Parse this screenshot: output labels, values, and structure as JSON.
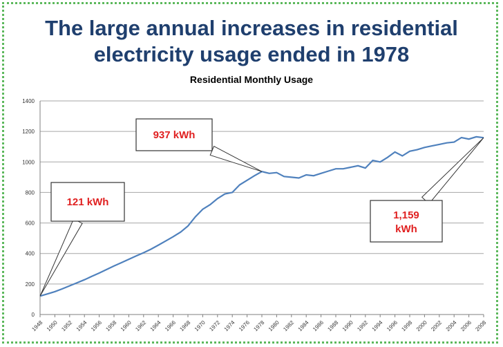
{
  "headline": {
    "line1": "The large annual increases in residential",
    "line2": "electricity usage ended in 1978"
  },
  "chart_data": {
    "type": "line",
    "title": "Residential Monthly Usage",
    "xlabel": "",
    "ylabel": "",
    "ylim": [
      0,
      1400
    ],
    "xlim": [
      1948,
      2008
    ],
    "yticks": [
      "0",
      "200",
      "400",
      "600",
      "800",
      "1000",
      "1200",
      "1400"
    ],
    "xticks": [
      "1948",
      "1950",
      "1952",
      "1954",
      "1956",
      "1958",
      "1960",
      "1962",
      "1964",
      "1966",
      "1968",
      "1970",
      "1972",
      "1974",
      "1976",
      "1978",
      "1980",
      "1982",
      "1984",
      "1986",
      "1988",
      "1990",
      "1992",
      "1994",
      "1996",
      "1998",
      "2000",
      "2002",
      "2004",
      "2006",
      "2008"
    ],
    "grid": true,
    "line_color": "#4f81bd",
    "series": [
      {
        "x": [
          1948,
          1949,
          1950,
          1951,
          1952,
          1953,
          1954,
          1955,
          1956,
          1957,
          1958,
          1959,
          1960,
          1961,
          1962,
          1963,
          1964,
          1965,
          1966,
          1967,
          1968,
          1969,
          1970,
          1971,
          1972,
          1973,
          1974,
          1975,
          1976,
          1977,
          1978,
          1979,
          1980,
          1981,
          1982,
          1983,
          1984,
          1985,
          1986,
          1987,
          1988,
          1989,
          1990,
          1991,
          1992,
          1993,
          1994,
          1995,
          1996,
          1997,
          1998,
          1999,
          2000,
          2001,
          2002,
          2003,
          2004,
          2005,
          2006,
          2007,
          2008
        ],
        "y": [
          121,
          135,
          150,
          168,
          188,
          208,
          228,
          250,
          272,
          295,
          318,
          340,
          362,
          384,
          405,
          428,
          455,
          482,
          510,
          540,
          580,
          640,
          690,
          720,
          760,
          790,
          800,
          850,
          880,
          910,
          937,
          925,
          930,
          905,
          900,
          895,
          915,
          910,
          925,
          940,
          955,
          955,
          965,
          975,
          960,
          1010,
          1000,
          1030,
          1065,
          1040,
          1070,
          1080,
          1095,
          1105,
          1115,
          1125,
          1130,
          1160,
          1150,
          1165,
          1159
        ]
      }
    ],
    "annotations": [
      {
        "text": "121 kWh",
        "x": 1948,
        "y": 121
      },
      {
        "text": "937 kWh",
        "x": 1978,
        "y": 937
      },
      {
        "text": "1,159",
        "text2": "kWh",
        "x": 2008,
        "y": 1159
      }
    ]
  }
}
